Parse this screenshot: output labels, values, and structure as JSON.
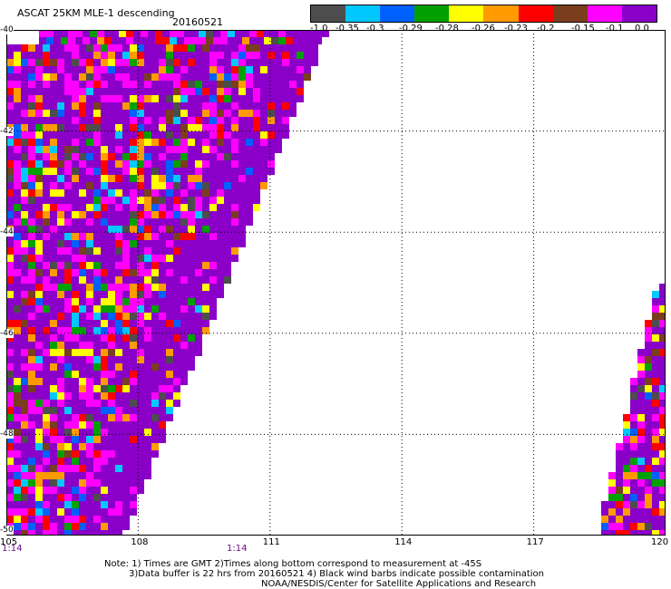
{
  "header": {
    "title": "ASCAT 25KM MLE-1 descending",
    "date": "20160521"
  },
  "colorbar": {
    "colors": [
      "#4d4d4d",
      "#00c8ff",
      "#0060ff",
      "#00a000",
      "#ffff00",
      "#ff9a00",
      "#ff0000",
      "#7a3e1e",
      "#ff00ff",
      "#8a00c8"
    ],
    "labels": [
      "-1.0",
      "-0.35",
      "-0.3",
      "-0.29",
      "-0.28",
      "-0.26",
      "-0.23",
      "-0.2",
      "-0.15",
      "-0.1",
      "0.0"
    ]
  },
  "axes": {
    "x_ticks": [
      "105",
      "108",
      "111",
      "114",
      "117",
      "120"
    ],
    "y_ticks": [
      "-40",
      "-42",
      "-44",
      "-46",
      "-48",
      "-50"
    ]
  },
  "times": [
    "1:14",
    "1:14"
  ],
  "notes": {
    "line1": "Note: 1) Times are GMT 2)Times along bottom correspond to measurement at -45S",
    "line2": "3)Data buffer is 22 hrs from 20160521 4) Black wind barbs indicate possible contamination",
    "line3": "NOAA/NESDIS/Center for Satellite Applications and Research"
  }
}
